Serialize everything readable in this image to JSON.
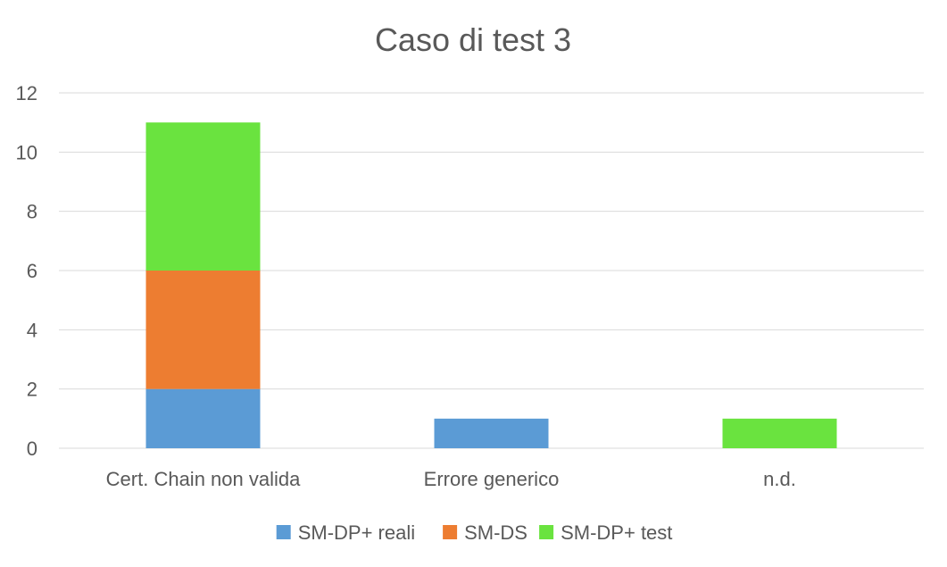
{
  "chart_data": {
    "type": "bar",
    "stacked": true,
    "title": "Caso di test 3",
    "xlabel": "",
    "ylabel": "",
    "ylim": [
      0,
      12
    ],
    "y_ticks": [
      0,
      2,
      4,
      6,
      8,
      10,
      12
    ],
    "grid": true,
    "legend_position": "bottom",
    "categories": [
      "Cert. Chain non valida",
      "Errore generico",
      "n.d."
    ],
    "series": [
      {
        "name": "SM-DP+ reali",
        "color": "#5b9bd5",
        "values": [
          2,
          1,
          0
        ]
      },
      {
        "name": "SM-DS",
        "color": "#ed7d31",
        "values": [
          4,
          0,
          0
        ]
      },
      {
        "name": "SM-DP+ test",
        "color": "#6ae33f",
        "values": [
          5,
          0,
          1
        ]
      }
    ]
  }
}
